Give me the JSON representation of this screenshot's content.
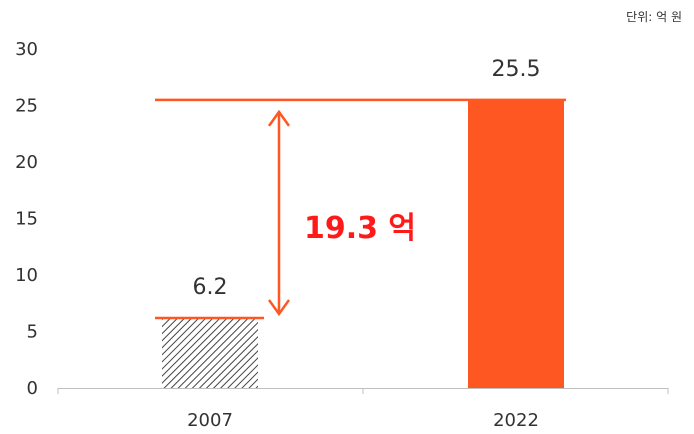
{
  "unit_note": "단위: 억 원",
  "colors": {
    "bar_2022": "#ff5722",
    "line": "#ff5722",
    "hatch": "#444444",
    "diff_text": "#ff1a1a",
    "axis": "#bfbfbf",
    "text": "#333333"
  },
  "chart_data": {
    "type": "bar",
    "categories": [
      "2007",
      "2022"
    ],
    "values": [
      6.2,
      25.5
    ],
    "data_labels": [
      "6.2",
      "25.5"
    ],
    "ylim": [
      0,
      30
    ],
    "yticks": [
      "0",
      "5",
      "10",
      "15",
      "20",
      "25",
      "30"
    ],
    "grid": false,
    "annotation": {
      "text": "19.3 억",
      "from_value": 6.2,
      "to_value": 25.5
    }
  }
}
